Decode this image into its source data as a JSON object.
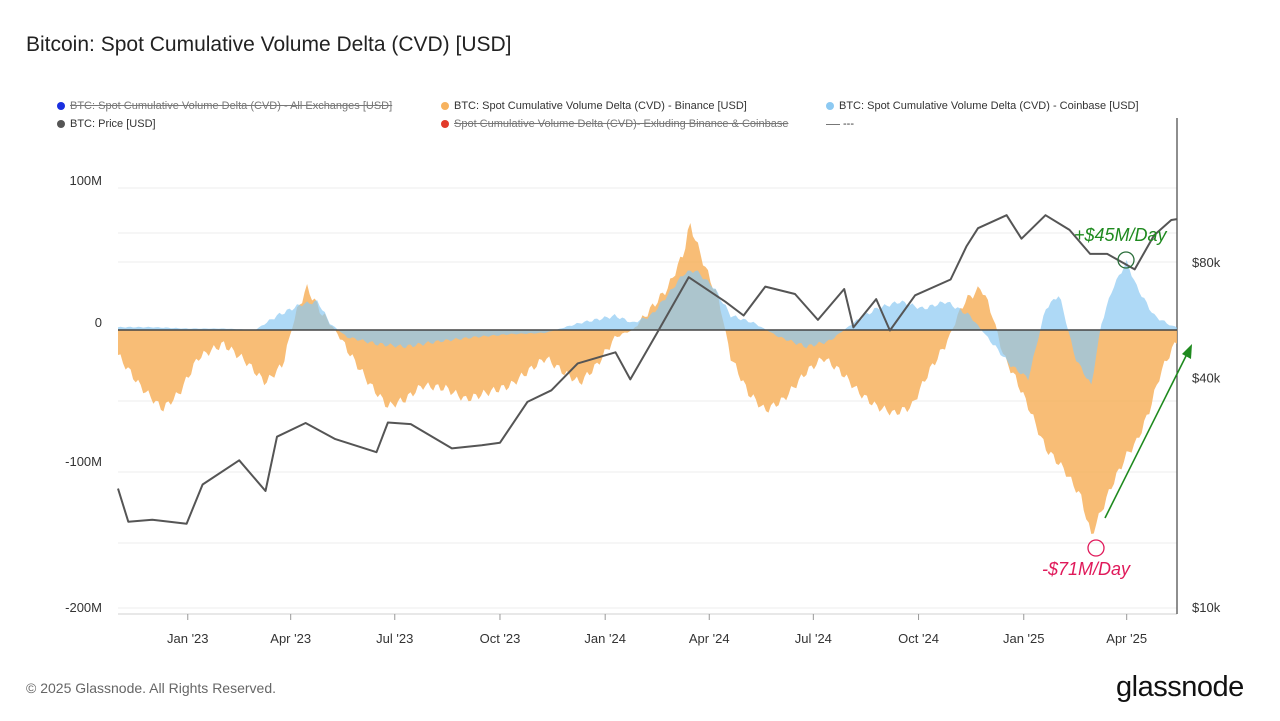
{
  "title": "Bitcoin: Spot Cumulative Volume Delta (CVD) [USD]",
  "legend": [
    {
      "label": "BTC: Spot Cumulative Volume Delta (CVD) - All Exchanges [USD]",
      "color": "#1a2fe0",
      "enabled": false
    },
    {
      "label": "BTC: Spot Cumulative Volume Delta (CVD) - Binance [USD]",
      "color": "#f7b25e",
      "enabled": true
    },
    {
      "label": "BTC: Spot Cumulative Volume Delta (CVD) - Coinbase [USD]",
      "color": "#8cc9f2",
      "enabled": true
    },
    {
      "label": "BTC: Price [USD]",
      "color": "#555555",
      "enabled": true
    },
    {
      "label": "Spot Cumulative Volume Delta (CVD)- Exluding Binance & Coinbase",
      "color": "#e23a2a",
      "enabled": false
    },
    {
      "label": "---",
      "color": "#777777",
      "enabled": true
    }
  ],
  "footer": "© 2025 Glassnode. All Rights Reserved.",
  "brand": "glassnode",
  "chart_data": {
    "type": "area",
    "x_tick_labels": [
      "Jan '23",
      "Apr '23",
      "Jul '23",
      "Oct '23",
      "Jan '24",
      "Apr '24",
      "Jul '24",
      "Oct '24",
      "Jan '25",
      "Apr '25"
    ],
    "y_left_ticks": [
      "100M",
      "0",
      "-100M",
      "-200M"
    ],
    "y_right_ticks": [
      "$80k",
      "$40k",
      "$10k"
    ],
    "ylim_left": [
      -200,
      100
    ],
    "y_left_unit": "M USD",
    "y_right_scale": "log",
    "x_range": [
      "2022-11-01",
      "2025-05-15"
    ],
    "grid": true,
    "legend_position": "top",
    "annotations": {
      "up": "+$45M/Day",
      "down": "-$71M/Day"
    },
    "series": [
      {
        "name": "BTC: Spot Cumulative Volume Delta (CVD) - Binance [USD]",
        "color": "#f7b25e",
        "points": [
          [
            "2022-11-01",
            -18
          ],
          [
            "2022-11-20",
            -40
          ],
          [
            "2022-12-10",
            -57
          ],
          [
            "2022-12-25",
            -45
          ],
          [
            "2023-01-10",
            -20
          ],
          [
            "2023-02-01",
            -10
          ],
          [
            "2023-02-20",
            -22
          ],
          [
            "2023-03-10",
            -38
          ],
          [
            "2023-03-25",
            -25
          ],
          [
            "2023-04-05",
            10
          ],
          [
            "2023-04-15",
            30
          ],
          [
            "2023-04-28",
            12
          ],
          [
            "2023-05-10",
            0
          ],
          [
            "2023-05-25",
            -20
          ],
          [
            "2023-06-10",
            -40
          ],
          [
            "2023-06-25",
            -55
          ],
          [
            "2023-07-10",
            -50
          ],
          [
            "2023-07-25",
            -40
          ],
          [
            "2023-08-15",
            -42
          ],
          [
            "2023-09-01",
            -50
          ],
          [
            "2023-09-20",
            -45
          ],
          [
            "2023-10-10",
            -40
          ],
          [
            "2023-10-25",
            -30
          ],
          [
            "2023-11-10",
            -20
          ],
          [
            "2023-11-25",
            -30
          ],
          [
            "2023-12-10",
            -38
          ],
          [
            "2023-12-25",
            -25
          ],
          [
            "2024-01-10",
            -5
          ],
          [
            "2024-01-25",
            0
          ],
          [
            "2024-02-10",
            15
          ],
          [
            "2024-02-25",
            30
          ],
          [
            "2024-03-10",
            55
          ],
          [
            "2024-03-15",
            75
          ],
          [
            "2024-03-28",
            45
          ],
          [
            "2024-04-10",
            20
          ],
          [
            "2024-04-20",
            -20
          ],
          [
            "2024-05-05",
            -45
          ],
          [
            "2024-05-20",
            -58
          ],
          [
            "2024-06-05",
            -50
          ],
          [
            "2024-06-25",
            -30
          ],
          [
            "2024-07-10",
            -20
          ],
          [
            "2024-07-25",
            -30
          ],
          [
            "2024-08-10",
            -45
          ],
          [
            "2024-08-25",
            -55
          ],
          [
            "2024-09-10",
            -60
          ],
          [
            "2024-09-25",
            -55
          ],
          [
            "2024-10-10",
            -30
          ],
          [
            "2024-10-25",
            -10
          ],
          [
            "2024-11-10",
            20
          ],
          [
            "2024-11-25",
            30
          ],
          [
            "2024-12-05",
            10
          ],
          [
            "2024-12-15",
            -20
          ],
          [
            "2024-12-25",
            -35
          ],
          [
            "2025-01-05",
            -55
          ],
          [
            "2025-01-20",
            -85
          ],
          [
            "2025-02-05",
            -100
          ],
          [
            "2025-02-20",
            -120
          ],
          [
            "2025-03-01",
            -148
          ],
          [
            "2025-03-10",
            -130
          ],
          [
            "2025-03-20",
            -110
          ],
          [
            "2025-04-01",
            -90
          ],
          [
            "2025-04-10",
            -80
          ],
          [
            "2025-04-20",
            -60
          ],
          [
            "2025-05-01",
            -30
          ],
          [
            "2025-05-10",
            -15
          ],
          [
            "2025-05-15",
            -8
          ]
        ]
      },
      {
        "name": "BTC: Spot Cumulative Volume Delta (CVD) - Coinbase [USD]",
        "color": "#8cc9f2",
        "points": [
          [
            "2022-11-01",
            2
          ],
          [
            "2022-12-01",
            2
          ],
          [
            "2023-01-01",
            1
          ],
          [
            "2023-02-01",
            1
          ],
          [
            "2023-03-01",
            0
          ],
          [
            "2023-03-20",
            10
          ],
          [
            "2023-04-10",
            18
          ],
          [
            "2023-04-25",
            20
          ],
          [
            "2023-05-05",
            5
          ],
          [
            "2023-05-20",
            -5
          ],
          [
            "2023-06-15",
            -10
          ],
          [
            "2023-07-10",
            -12
          ],
          [
            "2023-08-10",
            -8
          ],
          [
            "2023-09-10",
            -5
          ],
          [
            "2023-10-10",
            -3
          ],
          [
            "2023-11-10",
            -2
          ],
          [
            "2023-12-10",
            5
          ],
          [
            "2024-01-10",
            10
          ],
          [
            "2024-01-25",
            5
          ],
          [
            "2024-02-10",
            10
          ],
          [
            "2024-02-25",
            25
          ],
          [
            "2024-03-10",
            40
          ],
          [
            "2024-03-20",
            42
          ],
          [
            "2024-04-05",
            30
          ],
          [
            "2024-04-20",
            10
          ],
          [
            "2024-05-10",
            5
          ],
          [
            "2024-06-01",
            -5
          ],
          [
            "2024-06-25",
            -12
          ],
          [
            "2024-07-15",
            -8
          ],
          [
            "2024-08-05",
            5
          ],
          [
            "2024-08-25",
            15
          ],
          [
            "2024-09-15",
            20
          ],
          [
            "2024-10-05",
            15
          ],
          [
            "2024-10-25",
            20
          ],
          [
            "2024-11-15",
            10
          ],
          [
            "2024-12-05",
            -10
          ],
          [
            "2024-12-20",
            -25
          ],
          [
            "2025-01-05",
            -35
          ],
          [
            "2025-01-20",
            15
          ],
          [
            "2025-02-01",
            25
          ],
          [
            "2025-02-15",
            -20
          ],
          [
            "2025-03-01",
            -40
          ],
          [
            "2025-03-10",
            5
          ],
          [
            "2025-03-20",
            30
          ],
          [
            "2025-04-01",
            48
          ],
          [
            "2025-04-10",
            30
          ],
          [
            "2025-04-25",
            10
          ],
          [
            "2025-05-10",
            3
          ],
          [
            "2025-05-15",
            2
          ]
        ]
      },
      {
        "name": "BTC: Price [USD]",
        "color": "#555555",
        "axis": "right",
        "points": [
          [
            "2022-11-01",
            20500
          ],
          [
            "2022-11-10",
            16800
          ],
          [
            "2022-12-01",
            17000
          ],
          [
            "2022-12-31",
            16600
          ],
          [
            "2023-01-14",
            21000
          ],
          [
            "2023-02-15",
            24300
          ],
          [
            "2023-03-10",
            20200
          ],
          [
            "2023-03-20",
            28000
          ],
          [
            "2023-04-14",
            30400
          ],
          [
            "2023-05-10",
            27600
          ],
          [
            "2023-06-15",
            25500
          ],
          [
            "2023-06-25",
            30500
          ],
          [
            "2023-07-15",
            30200
          ],
          [
            "2023-08-20",
            26100
          ],
          [
            "2023-09-15",
            26600
          ],
          [
            "2023-10-01",
            27000
          ],
          [
            "2023-10-25",
            34500
          ],
          [
            "2023-11-15",
            37000
          ],
          [
            "2023-12-08",
            43500
          ],
          [
            "2024-01-10",
            46500
          ],
          [
            "2024-01-23",
            39500
          ],
          [
            "2024-02-15",
            52000
          ],
          [
            "2024-03-14",
            73000
          ],
          [
            "2024-04-15",
            63000
          ],
          [
            "2024-05-01",
            58000
          ],
          [
            "2024-05-20",
            69000
          ],
          [
            "2024-06-15",
            66000
          ],
          [
            "2024-07-05",
            56500
          ],
          [
            "2024-07-28",
            68000
          ],
          [
            "2024-08-05",
            54000
          ],
          [
            "2024-08-25",
            64000
          ],
          [
            "2024-09-06",
            53000
          ],
          [
            "2024-09-28",
            65500
          ],
          [
            "2024-10-29",
            72000
          ],
          [
            "2024-11-12",
            88000
          ],
          [
            "2024-11-22",
            98000
          ],
          [
            "2024-12-17",
            106000
          ],
          [
            "2024-12-30",
            92000
          ],
          [
            "2025-01-20",
            106000
          ],
          [
            "2025-02-10",
            97000
          ],
          [
            "2025-02-28",
            84000
          ],
          [
            "2025-03-15",
            84000
          ],
          [
            "2025-04-08",
            76500
          ],
          [
            "2025-04-25",
            94000
          ],
          [
            "2025-05-10",
            103000
          ],
          [
            "2025-05-15",
            103500
          ]
        ]
      }
    ]
  }
}
